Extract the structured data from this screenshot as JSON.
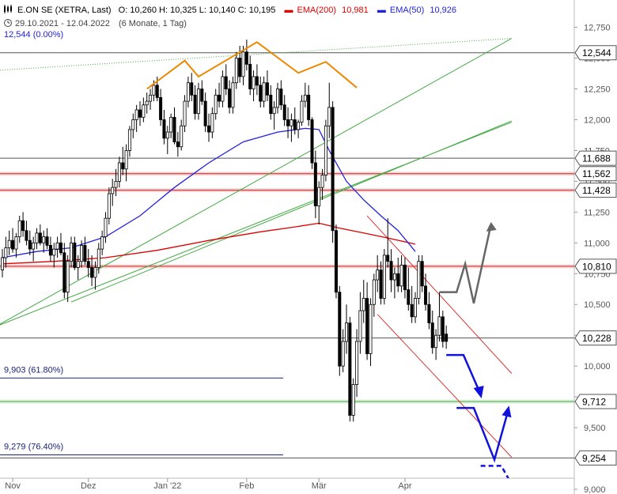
{
  "header": {
    "icon": "candlestick-icon",
    "symbol": "E.ON SE (XETRA, Last)",
    "ohlc": "O: 10,260  H: 10,325  L: 10,140  C: 10,195",
    "ema200_label": "EMA(200)",
    "ema200_value": "10,981",
    "ema50_label": "EMA(50)",
    "ema50_value": "10,926",
    "clock_icon": "clock-icon",
    "date_range": "29.10.2021 - 12.04.2022",
    "period": "(6 Monate, 1 Tag)",
    "ref_line": "12,544 (0.00%)"
  },
  "colors": {
    "ema200": "#dd0000",
    "ema50": "#2222dd",
    "candle": "#000000",
    "trend_green": "#44aa44",
    "channel_red": "#dd3333",
    "pattern_orange": "#ee8800",
    "forecast_gray": "#666666",
    "forecast_blue": "#1111dd",
    "fib_navy": "#1a237e"
  },
  "chart_data": {
    "type": "candlestick",
    "title": "E.ON SE (XETRA, Last)",
    "ylim": [
      9.0,
      12.85
    ],
    "y_ticks": [
      "12,750",
      "12,500",
      "12,250",
      "12,000",
      "11,750",
      "11,500",
      "11,250",
      "11,000",
      "10,750",
      "10,500",
      "10,250",
      "10,000",
      "9,750",
      "9,500",
      "9,250",
      "9,000"
    ],
    "x_labels": [
      {
        "label": "Nov",
        "index": 3
      },
      {
        "label": "Dez",
        "index": 25
      },
      {
        "label": "Jan '22",
        "index": 48
      },
      {
        "label": "Feb",
        "index": 71
      },
      {
        "label": "Mär",
        "index": 92
      },
      {
        "label": "Apr",
        "index": 117
      }
    ],
    "x_count": 146,
    "last_index": 122,
    "horizontal_levels": [
      {
        "value": 12.544,
        "label": "12,544",
        "color": "#555555"
      },
      {
        "value": 11.688,
        "label": "11,688",
        "color": "#555555"
      },
      {
        "value": 11.562,
        "label": "11,562",
        "color": "#cc2222"
      },
      {
        "value": 11.428,
        "label": "11,428",
        "color": "#cc2222"
      },
      {
        "value": 10.81,
        "label": "10,810",
        "color": "#cc2222"
      },
      {
        "value": 10.228,
        "label": "10,228",
        "color": "#555555"
      },
      {
        "value": 9.712,
        "label": "9,712",
        "color": "#44aa44"
      },
      {
        "value": 9.254,
        "label": "9,254",
        "color": "#555555"
      }
    ],
    "fib_levels": [
      {
        "value": 9.903,
        "label": "9,903 (61.80%)"
      },
      {
        "value": 9.279,
        "label": "9,279 (76.40%)"
      }
    ],
    "ohlc": [
      [
        10.78,
        10.95,
        10.72,
        10.88
      ],
      [
        10.88,
        11.05,
        10.8,
        10.96
      ],
      [
        10.96,
        11.1,
        10.9,
        11.02
      ],
      [
        11.02,
        11.12,
        10.92,
        10.95
      ],
      [
        10.95,
        11.08,
        10.88,
        11.05
      ],
      [
        11.05,
        11.22,
        11.0,
        11.18
      ],
      [
        11.18,
        11.25,
        11.05,
        11.1
      ],
      [
        11.1,
        11.18,
        10.98,
        11.02
      ],
      [
        11.02,
        11.1,
        10.9,
        10.95
      ],
      [
        10.95,
        11.05,
        10.85,
        11.0
      ],
      [
        11.0,
        11.12,
        10.95,
        11.08
      ],
      [
        11.08,
        11.15,
        10.98,
        11.0
      ],
      [
        11.0,
        11.1,
        10.92,
        11.05
      ],
      [
        11.05,
        11.12,
        10.95,
        10.98
      ],
      [
        10.98,
        11.05,
        10.85,
        10.9
      ],
      [
        10.9,
        11.0,
        10.8,
        10.95
      ],
      [
        10.95,
        11.05,
        10.88,
        11.0
      ],
      [
        11.0,
        11.08,
        10.9,
        10.92
      ],
      [
        10.92,
        11.0,
        10.55,
        10.6
      ],
      [
        10.6,
        10.9,
        10.52,
        10.85
      ],
      [
        10.85,
        11.05,
        10.8,
        11.0
      ],
      [
        11.0,
        11.05,
        10.78,
        10.8
      ],
      [
        10.8,
        10.9,
        10.7,
        10.85
      ],
      [
        10.85,
        11.02,
        10.8,
        10.98
      ],
      [
        10.98,
        11.05,
        10.82,
        10.85
      ],
      [
        10.85,
        10.95,
        10.72,
        10.8
      ],
      [
        10.8,
        10.9,
        10.65,
        10.72
      ],
      [
        10.72,
        10.85,
        10.62,
        10.8
      ],
      [
        10.8,
        11.0,
        10.75,
        10.95
      ],
      [
        10.95,
        11.1,
        10.9,
        11.05
      ],
      [
        11.05,
        11.25,
        11.0,
        11.2
      ],
      [
        11.2,
        11.45,
        11.15,
        11.4
      ],
      [
        11.4,
        11.52,
        11.3,
        11.45
      ],
      [
        11.45,
        11.6,
        11.38,
        11.5
      ],
      [
        11.5,
        11.7,
        11.45,
        11.65
      ],
      [
        11.65,
        11.78,
        11.55,
        11.6
      ],
      [
        11.6,
        11.8,
        11.5,
        11.75
      ],
      [
        11.75,
        11.95,
        11.7,
        11.92
      ],
      [
        11.92,
        12.05,
        11.85,
        12.0
      ],
      [
        12.0,
        12.12,
        11.9,
        12.08
      ],
      [
        12.08,
        12.15,
        11.95,
        12.02
      ],
      [
        12.02,
        12.18,
        11.98,
        12.12
      ],
      [
        12.12,
        12.22,
        12.05,
        12.15
      ],
      [
        12.15,
        12.25,
        12.08,
        12.2
      ],
      [
        12.2,
        12.32,
        12.15,
        12.28
      ],
      [
        12.28,
        12.35,
        12.15,
        12.18
      ],
      [
        12.18,
        12.25,
        11.95,
        12.0
      ],
      [
        12.0,
        12.08,
        11.8,
        11.85
      ],
      [
        11.85,
        11.95,
        11.72,
        11.9
      ],
      [
        11.9,
        12.05,
        11.85,
        12.02
      ],
      [
        12.02,
        12.1,
        11.8,
        11.82
      ],
      [
        11.82,
        11.9,
        11.7,
        11.78
      ],
      [
        11.78,
        12.0,
        11.75,
        11.95
      ],
      [
        11.95,
        12.2,
        11.9,
        12.15
      ],
      [
        12.15,
        12.35,
        12.1,
        12.3
      ],
      [
        12.3,
        12.38,
        12.15,
        12.2
      ],
      [
        12.2,
        12.28,
        12.0,
        12.05
      ],
      [
        12.05,
        12.3,
        12.0,
        12.25
      ],
      [
        12.25,
        12.32,
        12.12,
        12.15
      ],
      [
        12.15,
        12.22,
        11.9,
        11.95
      ],
      [
        11.95,
        12.05,
        11.82,
        11.9
      ],
      [
        11.9,
        12.1,
        11.85,
        12.05
      ],
      [
        12.05,
        12.25,
        12.0,
        12.2
      ],
      [
        12.2,
        12.3,
        12.1,
        12.15
      ],
      [
        12.15,
        12.4,
        12.1,
        12.35
      ],
      [
        12.35,
        12.45,
        12.2,
        12.25
      ],
      [
        12.25,
        12.32,
        12.05,
        12.1
      ],
      [
        12.1,
        12.35,
        12.05,
        12.3
      ],
      [
        12.3,
        12.55,
        12.25,
        12.5
      ],
      [
        12.5,
        12.6,
        12.3,
        12.35
      ],
      [
        12.35,
        12.6,
        12.28,
        12.55
      ],
      [
        12.55,
        12.65,
        12.4,
        12.45
      ],
      [
        12.45,
        12.52,
        12.2,
        12.25
      ],
      [
        12.25,
        12.4,
        12.15,
        12.35
      ],
      [
        12.35,
        12.45,
        12.2,
        12.28
      ],
      [
        12.28,
        12.35,
        12.1,
        12.15
      ],
      [
        12.15,
        12.35,
        12.1,
        12.3
      ],
      [
        12.3,
        12.4,
        12.15,
        12.2
      ],
      [
        12.2,
        12.28,
        12.0,
        12.05
      ],
      [
        12.05,
        12.15,
        11.92,
        12.1
      ],
      [
        12.1,
        12.3,
        12.05,
        12.25
      ],
      [
        12.25,
        12.32,
        12.08,
        12.12
      ],
      [
        12.12,
        12.2,
        11.95,
        12.0
      ],
      [
        12.0,
        12.1,
        11.85,
        11.95
      ],
      [
        11.95,
        12.05,
        11.82,
        12.0
      ],
      [
        12.0,
        12.1,
        11.88,
        11.92
      ],
      [
        11.92,
        12.0,
        11.85,
        11.98
      ],
      [
        11.98,
        12.2,
        11.95,
        12.15
      ],
      [
        12.15,
        12.3,
        12.1,
        12.2
      ],
      [
        12.2,
        12.28,
        11.95,
        12.0
      ],
      [
        12.0,
        12.02,
        11.6,
        11.65
      ],
      [
        11.65,
        11.75,
        11.2,
        11.3
      ],
      [
        11.3,
        11.5,
        11.15,
        11.45
      ],
      [
        11.45,
        11.6,
        11.35,
        11.55
      ],
      [
        11.55,
        12.0,
        11.5,
        11.95
      ],
      [
        11.95,
        12.3,
        11.85,
        12.1
      ],
      [
        12.1,
        12.15,
        11.0,
        11.1
      ],
      [
        11.1,
        11.15,
        10.55,
        10.6
      ],
      [
        10.6,
        10.65,
        9.92,
        10.0
      ],
      [
        10.0,
        10.3,
        9.95,
        10.2
      ],
      [
        10.2,
        10.5,
        10.1,
        10.35
      ],
      [
        10.35,
        10.4,
        9.55,
        9.6
      ],
      [
        9.6,
        9.9,
        9.55,
        9.85
      ],
      [
        9.85,
        10.3,
        9.75,
        10.2
      ],
      [
        10.2,
        10.6,
        10.1,
        10.45
      ],
      [
        10.45,
        10.7,
        10.35,
        10.55
      ],
      [
        10.55,
        10.68,
        10.05,
        10.1
      ],
      [
        10.1,
        10.55,
        10.0,
        10.5
      ],
      [
        10.5,
        10.75,
        10.4,
        10.7
      ],
      [
        10.7,
        10.9,
        10.6,
        10.78
      ],
      [
        10.78,
        10.85,
        10.5,
        10.55
      ],
      [
        10.55,
        10.95,
        10.5,
        10.9
      ],
      [
        10.9,
        11.2,
        10.8,
        10.85
      ],
      [
        10.85,
        10.95,
        10.6,
        10.7
      ],
      [
        10.7,
        10.8,
        10.55,
        10.75
      ],
      [
        10.75,
        10.88,
        10.6,
        10.65
      ],
      [
        10.65,
        10.9,
        10.6,
        10.82
      ],
      [
        10.82,
        10.88,
        10.55,
        10.62
      ],
      [
        10.62,
        10.8,
        10.45,
        10.5
      ],
      [
        10.5,
        10.65,
        10.35,
        10.4
      ],
      [
        10.4,
        10.6,
        10.35,
        10.55
      ],
      [
        10.55,
        10.9,
        10.5,
        10.85
      ],
      [
        10.85,
        10.9,
        10.6,
        10.65
      ],
      [
        10.65,
        10.75,
        10.45,
        10.5
      ],
      [
        10.5,
        10.6,
        10.3,
        10.35
      ],
      [
        10.35,
        10.45,
        10.1,
        10.15
      ],
      [
        10.15,
        10.3,
        10.05,
        10.25
      ],
      [
        10.25,
        10.6,
        10.2,
        10.4
      ],
      [
        10.4,
        10.45,
        10.15,
        10.2
      ],
      [
        10.26,
        10.33,
        10.14,
        10.2
      ]
    ],
    "series": [
      {
        "name": "EMA(200)",
        "color": "#dd0000",
        "x": [
          0,
          15,
          30,
          45,
          60,
          75,
          85,
          92,
          98,
          105,
          112,
          120
        ],
        "values": [
          10.83,
          10.85,
          10.88,
          10.94,
          11.02,
          11.09,
          11.13,
          11.16,
          11.12,
          11.08,
          11.04,
          10.99
        ]
      },
      {
        "name": "EMA(50)",
        "color": "#2222dd",
        "x": [
          0,
          10,
          20,
          30,
          40,
          50,
          60,
          70,
          80,
          88,
          92,
          95,
          100,
          105,
          110,
          115,
          120
        ],
        "values": [
          10.88,
          10.93,
          10.96,
          11.05,
          11.22,
          11.45,
          11.65,
          11.82,
          11.9,
          11.93,
          11.92,
          11.75,
          11.5,
          11.35,
          11.22,
          11.1,
          10.93
        ]
      }
    ],
    "trendlines": [
      {
        "kind": "green",
        "x1": -2,
        "y1": 10.32,
        "x2": 148,
        "y2": 12.66
      },
      {
        "kind": "green",
        "x1": -2,
        "y1": 10.32,
        "x2": 148,
        "y2": 11.98
      },
      {
        "kind": "green",
        "x1": 20,
        "y1": 10.52,
        "x2": 148,
        "y2": 11.99
      },
      {
        "kind": "green-dotted",
        "x1": -2,
        "y1": 12.4,
        "x2": 148,
        "y2": 12.66
      },
      {
        "kind": "red",
        "x1": 106,
        "y1": 11.22,
        "x2": 148,
        "y2": 9.94
      },
      {
        "kind": "red",
        "x1": 109,
        "y1": 10.42,
        "x2": 148,
        "y2": 9.26
      }
    ],
    "pattern_orange": {
      "x": [
        42,
        53,
        57,
        74,
        86,
        94,
        103
      ],
      "values": [
        12.25,
        12.48,
        12.35,
        12.63,
        12.38,
        12.47,
        12.26
      ]
    },
    "forecast_gray": {
      "x": [
        127,
        132,
        134.5,
        137,
        142
      ],
      "values": [
        10.6,
        10.6,
        10.83,
        10.51,
        11.15
      ]
    },
    "forecast_blue_down": {
      "x": [
        129,
        134,
        139
      ],
      "values": [
        10.09,
        10.09,
        9.77
      ]
    },
    "forecast_blue_vshape": {
      "x": [
        132,
        137,
        143,
        147
      ],
      "values": [
        9.66,
        9.66,
        9.24,
        9.64
      ]
    },
    "forecast_blue_dashed": {
      "x": [
        139,
        145,
        148
      ],
      "values": [
        9.19,
        9.19,
        9.04
      ]
    }
  }
}
